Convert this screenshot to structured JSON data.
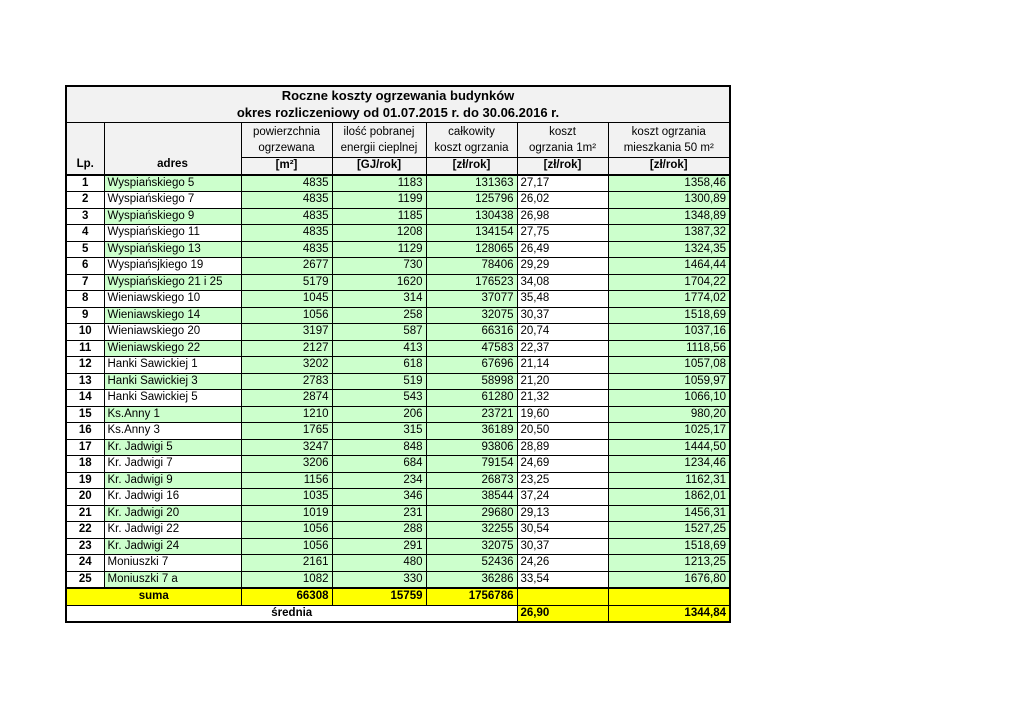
{
  "title": {
    "line1": "Roczne koszty ogrzewania budynków",
    "line2": "okres rozliczeniowy od 01.07.2015 r. do 30.06.2016 r."
  },
  "headers": {
    "lp": "Lp.",
    "adres": "adres",
    "columns": [
      {
        "line1": "powierzchnia",
        "line2": "ogrzewana",
        "unit": "[m²]"
      },
      {
        "line1": "ilość pobranej",
        "line2": "energii cieplnej",
        "unit": "[GJ/rok]"
      },
      {
        "line1": "całkowity",
        "line2": "koszt ogrzania",
        "unit": "[zł/rok]"
      },
      {
        "line1": "koszt",
        "line2": "ogrzania 1m²",
        "unit": "[zł/rok]"
      },
      {
        "line1": "koszt ogrzania",
        "line2": "mieszkania 50 m²",
        "unit": "[zł/rok]"
      }
    ]
  },
  "rows": [
    {
      "lp": "1",
      "adres": "Wyspiańskiego 5",
      "area": "4835",
      "energy": "1183",
      "total": "131363",
      "per_m2": "27,17",
      "per_50m2": "1358,46"
    },
    {
      "lp": "2",
      "adres": "Wyspiańskiego 7",
      "area": "4835",
      "energy": "1199",
      "total": "125796",
      "per_m2": "26,02",
      "per_50m2": "1300,89"
    },
    {
      "lp": "3",
      "adres": "Wyspiańskiego 9",
      "area": "4835",
      "energy": "1185",
      "total": "130438",
      "per_m2": "26,98",
      "per_50m2": "1348,89"
    },
    {
      "lp": "4",
      "adres": "Wyspiańskiego 11",
      "area": "4835",
      "energy": "1208",
      "total": "134154",
      "per_m2": "27,75",
      "per_50m2": "1387,32"
    },
    {
      "lp": "5",
      "adres": "Wyspiańskiego 13",
      "area": "4835",
      "energy": "1129",
      "total": "128065",
      "per_m2": "26,49",
      "per_50m2": "1324,35"
    },
    {
      "lp": "6",
      "adres": "Wyspiańsjkiego 19",
      "area": "2677",
      "energy": "730",
      "total": "78406",
      "per_m2": "29,29",
      "per_50m2": "1464,44"
    },
    {
      "lp": "7",
      "adres": "Wyspiańskiego 21 i 25",
      "area": "5179",
      "energy": "1620",
      "total": "176523",
      "per_m2": "34,08",
      "per_50m2": "1704,22"
    },
    {
      "lp": "8",
      "adres": "Wieniawskiego 10",
      "area": "1045",
      "energy": "314",
      "total": "37077",
      "per_m2": "35,48",
      "per_50m2": "1774,02"
    },
    {
      "lp": "9",
      "adres": "Wieniawskiego 14",
      "area": "1056",
      "energy": "258",
      "total": "32075",
      "per_m2": "30,37",
      "per_50m2": "1518,69"
    },
    {
      "lp": "10",
      "adres": "Wieniawskiego 20",
      "area": "3197",
      "energy": "587",
      "total": "66316",
      "per_m2": "20,74",
      "per_50m2": "1037,16"
    },
    {
      "lp": "11",
      "adres": "Wieniawskiego 22",
      "area": "2127",
      "energy": "413",
      "total": "47583",
      "per_m2": "22,37",
      "per_50m2": "1118,56"
    },
    {
      "lp": "12",
      "adres": "Hanki Sawickiej 1",
      "area": "3202",
      "energy": "618",
      "total": "67696",
      "per_m2": "21,14",
      "per_50m2": "1057,08"
    },
    {
      "lp": "13",
      "adres": "Hanki Sawickiej 3",
      "area": "2783",
      "energy": "519",
      "total": "58998",
      "per_m2": "21,20",
      "per_50m2": "1059,97"
    },
    {
      "lp": "14",
      "adres": "Hanki Sawickiej 5",
      "area": "2874",
      "energy": "543",
      "total": "61280",
      "per_m2": "21,32",
      "per_50m2": "1066,10"
    },
    {
      "lp": "15",
      "adres": "Ks.Anny 1",
      "area": "1210",
      "energy": "206",
      "total": "23721",
      "per_m2": "19,60",
      "per_50m2": "980,20"
    },
    {
      "lp": "16",
      "adres": "Ks.Anny 3",
      "area": "1765",
      "energy": "315",
      "total": "36189",
      "per_m2": "20,50",
      "per_50m2": "1025,17"
    },
    {
      "lp": "17",
      "adres": "Kr. Jadwigi 5",
      "area": "3247",
      "energy": "848",
      "total": "93806",
      "per_m2": "28,89",
      "per_50m2": "1444,50"
    },
    {
      "lp": "18",
      "adres": "Kr. Jadwigi 7",
      "area": "3206",
      "energy": "684",
      "total": "79154",
      "per_m2": "24,69",
      "per_50m2": "1234,46"
    },
    {
      "lp": "19",
      "adres": "Kr. Jadwigi 9",
      "area": "1156",
      "energy": "234",
      "total": "26873",
      "per_m2": "23,25",
      "per_50m2": "1162,31"
    },
    {
      "lp": "20",
      "adres": "Kr. Jadwigi 16",
      "area": "1035",
      "energy": "346",
      "total": "38544",
      "per_m2": "37,24",
      "per_50m2": "1862,01"
    },
    {
      "lp": "21",
      "adres": "Kr. Jadwigi 20",
      "area": "1019",
      "energy": "231",
      "total": "29680",
      "per_m2": "29,13",
      "per_50m2": "1456,31"
    },
    {
      "lp": "22",
      "adres": "Kr. Jadwigi 22",
      "area": "1056",
      "energy": "288",
      "total": "32255",
      "per_m2": "30,54",
      "per_50m2": "1527,25"
    },
    {
      "lp": "23",
      "adres": "Kr. Jadwigi 24",
      "area": "1056",
      "energy": "291",
      "total": "32075",
      "per_m2": "30,37",
      "per_50m2": "1518,69"
    },
    {
      "lp": "24",
      "adres": "Moniuszki 7",
      "area": "2161",
      "energy": "480",
      "total": "52436",
      "per_m2": "24,26",
      "per_50m2": "1213,25"
    },
    {
      "lp": "25",
      "adres": "Moniuszki 7 a",
      "area": "1082",
      "energy": "330",
      "total": "36286",
      "per_m2": "33,54",
      "per_50m2": "1676,80"
    }
  ],
  "summary": {
    "suma_label": "suma",
    "suma_area": "66308",
    "suma_energy": "15759",
    "suma_total": "1756786",
    "srednia_label": "średnia",
    "srednia_per_m2": "26,90",
    "srednia_per_50m2": "1344,84"
  },
  "colors": {
    "light_green": "#CCFFCC",
    "yellow": "#FFFF00",
    "header_gray": "#F2F2F2",
    "border": "#000000"
  }
}
